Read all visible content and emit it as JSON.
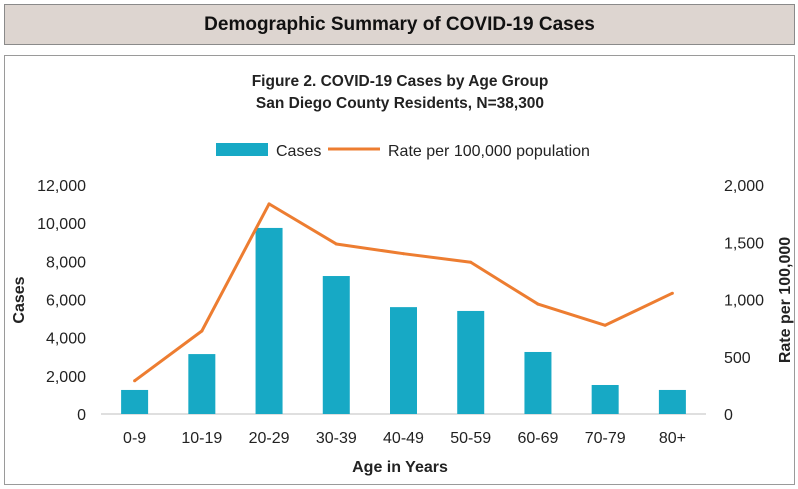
{
  "header": {
    "title": "Demographic Summary of COVID-19 Cases"
  },
  "chart_data": {
    "type": "bar",
    "title": "Figure 2. COVID-19 Cases by Age Group",
    "subtitle": "San Diego County Residents, N=38,300",
    "xlabel": "Age in Years",
    "ylabel": "Cases",
    "y2label": "Rate per 100,000",
    "categories": [
      "0-9",
      "10-19",
      "20-29",
      "30-39",
      "40-49",
      "50-59",
      "60-69",
      "70-79",
      "80+"
    ],
    "ylim": [
      0,
      12000
    ],
    "y2lim": [
      0,
      2000
    ],
    "yticks": [
      "0",
      "2,000",
      "4,000",
      "6,000",
      "8,000",
      "10,000",
      "12,000"
    ],
    "y2ticks": [
      "0",
      "500",
      "1,000",
      "1,500",
      "2,000"
    ],
    "legend_position": "top",
    "grid": false,
    "series": [
      {
        "name": "Cases",
        "type": "bar",
        "axis": "left",
        "color": "#17a9c5",
        "values": [
          1260,
          3140,
          9750,
          7230,
          5600,
          5400,
          3250,
          1520,
          1260
        ]
      },
      {
        "name": "Rate per 100,000 population",
        "type": "line",
        "axis": "right",
        "color": "#ed7d31",
        "values": [
          290,
          725,
          1835,
          1485,
          1400,
          1325,
          960,
          775,
          1055
        ]
      }
    ]
  }
}
